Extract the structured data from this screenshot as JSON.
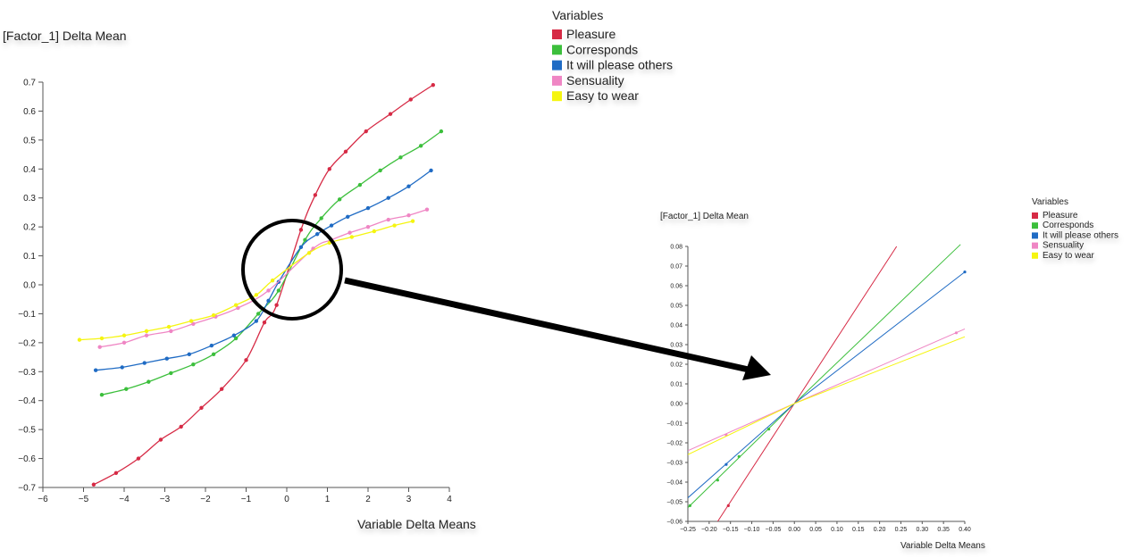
{
  "chart_data": [
    {
      "type": "line",
      "ylabel": "[Factor_1] Delta Mean",
      "xlabel": "Variable Delta Means",
      "xlim": [
        -6,
        4
      ],
      "ylim": [
        -0.7,
        0.7
      ],
      "xticks": [
        "−6",
        "−5",
        "−4",
        "−3",
        "−2",
        "−1",
        "0",
        "1",
        "2",
        "3",
        "4"
      ],
      "xtick_values": [
        -6,
        -5,
        -4,
        -3,
        -2,
        -1,
        0,
        1,
        2,
        3,
        4
      ],
      "yticks": [
        "−0.7",
        "−0.6",
        "−0.5",
        "−0.4",
        "−0.3",
        "−0.2",
        "−0.1",
        "0.0",
        "0.1",
        "0.2",
        "0.3",
        "0.4",
        "0.5",
        "0.6",
        "0.7"
      ],
      "ytick_values": [
        -0.7,
        -0.6,
        -0.5,
        -0.4,
        -0.3,
        -0.2,
        -0.1,
        0.0,
        0.1,
        0.2,
        0.3,
        0.4,
        0.5,
        0.6,
        0.7
      ],
      "legend_title": "Variables",
      "legend_position": "top-right",
      "series": [
        {
          "name": "Pleasure",
          "color": "#d62a45",
          "x": [
            -4.75,
            -4.2,
            -3.65,
            -3.1,
            -2.6,
            -2.1,
            -1.6,
            -1.0,
            -0.55,
            -0.25,
            0.35,
            0.7,
            1.05,
            1.45,
            1.95,
            2.55,
            3.05,
            3.6
          ],
          "y": [
            -0.69,
            -0.65,
            -0.6,
            -0.535,
            -0.49,
            -0.425,
            -0.36,
            -0.26,
            -0.13,
            -0.07,
            0.19,
            0.31,
            0.4,
            0.46,
            0.53,
            0.59,
            0.64,
            0.69
          ]
        },
        {
          "name": "Corresponds",
          "color": "#3cbf3c",
          "x": [
            -4.55,
            -3.95,
            -3.4,
            -2.85,
            -2.3,
            -1.8,
            -1.25,
            -0.7,
            -0.2,
            0.45,
            0.85,
            1.3,
            1.8,
            2.3,
            2.8,
            3.3,
            3.8
          ],
          "y": [
            -0.38,
            -0.36,
            -0.335,
            -0.305,
            -0.275,
            -0.24,
            -0.185,
            -0.1,
            -0.02,
            0.155,
            0.23,
            0.295,
            0.345,
            0.395,
            0.44,
            0.48,
            0.53
          ]
        },
        {
          "name": "It will please others",
          "color": "#1f6bc4",
          "x": [
            -4.7,
            -4.05,
            -3.5,
            -2.95,
            -2.4,
            -1.85,
            -1.3,
            -0.75,
            -0.45,
            -0.2,
            0.35,
            0.75,
            1.1,
            1.5,
            2.0,
            2.5,
            3.0,
            3.55
          ],
          "y": [
            -0.295,
            -0.285,
            -0.27,
            -0.255,
            -0.24,
            -0.21,
            -0.175,
            -0.125,
            -0.055,
            0.01,
            0.13,
            0.175,
            0.205,
            0.235,
            0.265,
            0.3,
            0.34,
            0.395
          ]
        },
        {
          "name": "Sensuality",
          "color": "#ef86c4",
          "x": [
            -4.6,
            -4.0,
            -3.45,
            -2.85,
            -2.3,
            -1.75,
            -1.2,
            -0.45,
            0.65,
            1.1,
            1.55,
            2.0,
            2.5,
            3.0,
            3.45
          ],
          "y": [
            -0.215,
            -0.2,
            -0.175,
            -0.16,
            -0.135,
            -0.11,
            -0.08,
            -0.02,
            0.125,
            0.155,
            0.18,
            0.2,
            0.225,
            0.24,
            0.26
          ]
        },
        {
          "name": "Easy to wear",
          "color": "#f5f510",
          "x": [
            -5.1,
            -4.55,
            -4.0,
            -3.45,
            -2.9,
            -2.35,
            -1.8,
            -1.25,
            -0.75,
            -0.35,
            0.55,
            1.05,
            1.6,
            2.15,
            2.65,
            3.1
          ],
          "y": [
            -0.19,
            -0.185,
            -0.175,
            -0.16,
            -0.145,
            -0.125,
            -0.105,
            -0.07,
            -0.035,
            0.015,
            0.11,
            0.145,
            0.165,
            0.185,
            0.205,
            0.22
          ]
        }
      ]
    },
    {
      "type": "line",
      "ylabel": "[Factor_1] Delta Mean",
      "xlabel": "Variable Delta Means",
      "xlim": [
        -0.25,
        0.4
      ],
      "ylim": [
        -0.06,
        0.08
      ],
      "xticks": [
        "−0.25",
        "−0.20",
        "−0.15",
        "−0.10",
        "−0.05",
        "0.00",
        "0.05",
        "0.10",
        "0.15",
        "0.20",
        "0.25",
        "0.30",
        "0.35",
        "0.40"
      ],
      "xtick_values": [
        -0.25,
        -0.2,
        -0.15,
        -0.1,
        -0.05,
        0.0,
        0.05,
        0.1,
        0.15,
        0.2,
        0.25,
        0.3,
        0.35,
        0.4
      ],
      "yticks": [
        "−0.06",
        "−0.05",
        "−0.04",
        "−0.03",
        "−0.02",
        "−0.01",
        "0.00",
        "0.01",
        "0.02",
        "0.03",
        "0.04",
        "0.05",
        "0.06",
        "0.07",
        "0.08"
      ],
      "ytick_values": [
        -0.06,
        -0.05,
        -0.04,
        -0.03,
        -0.02,
        -0.01,
        0.0,
        0.01,
        0.02,
        0.03,
        0.04,
        0.05,
        0.06,
        0.07,
        0.08
      ],
      "legend_title": "Variables",
      "legend_position": "top-right",
      "series": [
        {
          "name": "Pleasure",
          "color": "#d62a45",
          "x": [
            -0.18,
            0.0,
            0.24
          ],
          "y": [
            -0.06,
            0.0,
            0.08
          ],
          "px": [
            -0.155
          ],
          "py": [
            -0.052
          ]
        },
        {
          "name": "Corresponds",
          "color": "#3cbf3c",
          "x": [
            -0.25,
            0.0,
            0.39
          ],
          "y": [
            -0.053,
            0.0,
            0.081
          ],
          "px": [
            -0.245,
            -0.18,
            -0.13,
            -0.06
          ],
          "py": [
            -0.052,
            -0.039,
            -0.027,
            -0.013
          ]
        },
        {
          "name": "It will please others",
          "color": "#1f6bc4",
          "x": [
            -0.25,
            0.0,
            0.4
          ],
          "y": [
            -0.048,
            0.0,
            0.067
          ],
          "px": [
            -0.16,
            0.4
          ],
          "py": [
            -0.031,
            0.067
          ]
        },
        {
          "name": "Sensuality",
          "color": "#ef86c4",
          "x": [
            -0.25,
            0.0,
            0.4
          ],
          "y": [
            -0.024,
            0.0,
            0.038
          ],
          "px": [
            -0.16,
            0.38
          ],
          "py": [
            -0.016,
            0.036
          ]
        },
        {
          "name": "Easy to wear",
          "color": "#f5f510",
          "x": [
            -0.25,
            0.0,
            0.4
          ],
          "y": [
            -0.026,
            0.0,
            0.034
          ],
          "px": [],
          "py": []
        }
      ]
    }
  ]
}
